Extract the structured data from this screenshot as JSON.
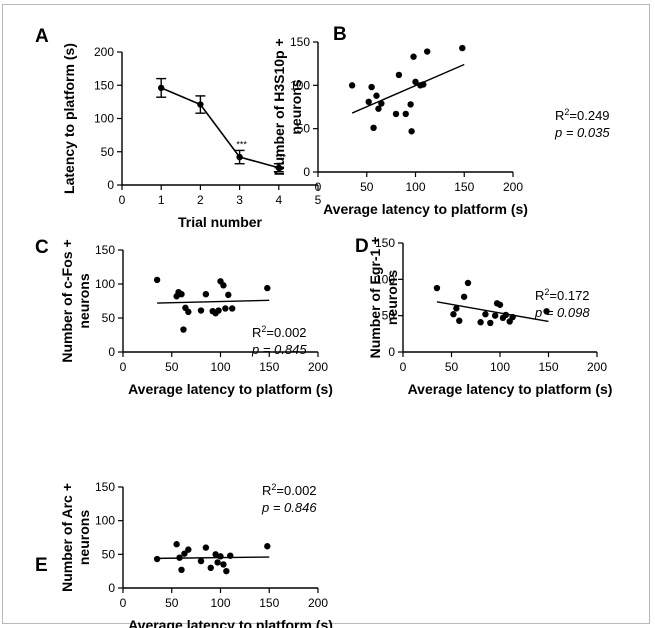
{
  "chart_data": [
    {
      "panel": "A",
      "type": "line",
      "xlabel": "Trial number",
      "ylabel": "Latency to platform (s)",
      "xlim": [
        0,
        5
      ],
      "ylim": [
        0,
        200
      ],
      "xticks": [
        0,
        1,
        2,
        3,
        4,
        5
      ],
      "yticks": [
        0,
        50,
        100,
        150,
        200
      ],
      "x": [
        1,
        2,
        3,
        4
      ],
      "values": [
        146,
        121,
        42,
        26
      ],
      "errors": [
        14,
        13,
        10,
        6
      ],
      "annotations": [
        "",
        "",
        "***",
        "***"
      ]
    },
    {
      "panel": "B",
      "type": "scatter",
      "xlabel": "Average latency to platform (s)",
      "ylabel": [
        "Number of H3S10p +",
        "neurons"
      ],
      "xlim": [
        0,
        200
      ],
      "ylim": [
        0,
        150
      ],
      "xticks": [
        0,
        50,
        100,
        150,
        200
      ],
      "yticks": [
        0,
        50,
        100,
        150
      ],
      "points": [
        [
          35,
          100
        ],
        [
          52,
          81
        ],
        [
          55,
          98
        ],
        [
          57,
          51
        ],
        [
          60,
          88
        ],
        [
          62,
          73
        ],
        [
          65,
          79
        ],
        [
          80,
          67
        ],
        [
          83,
          112
        ],
        [
          90,
          67
        ],
        [
          95,
          78
        ],
        [
          96,
          47
        ],
        [
          98,
          133
        ],
        [
          100,
          104
        ],
        [
          105,
          100
        ],
        [
          108,
          101
        ],
        [
          112,
          139
        ],
        [
          148,
          143
        ]
      ],
      "fit": [
        [
          35,
          68
        ],
        [
          150,
          124
        ]
      ],
      "r2_text": "=0.249",
      "p_text": "p = 0.035"
    },
    {
      "panel": "C",
      "type": "scatter",
      "xlabel": "Average latency to platform (s)",
      "ylabel": [
        "Number of c-Fos +",
        "neurons"
      ],
      "xlim": [
        0,
        200
      ],
      "ylim": [
        0,
        150
      ],
      "xticks": [
        0,
        50,
        100,
        150,
        200
      ],
      "yticks": [
        0,
        50,
        100,
        150
      ],
      "points": [
        [
          35,
          106
        ],
        [
          55,
          82
        ],
        [
          57,
          88
        ],
        [
          60,
          85
        ],
        [
          62,
          33
        ],
        [
          64,
          65
        ],
        [
          67,
          59
        ],
        [
          80,
          61
        ],
        [
          85,
          85
        ],
        [
          92,
          60
        ],
        [
          95,
          57
        ],
        [
          98,
          61
        ],
        [
          100,
          104
        ],
        [
          103,
          98
        ],
        [
          105,
          64
        ],
        [
          108,
          84
        ],
        [
          112,
          64
        ],
        [
          148,
          94
        ]
      ],
      "fit": [
        [
          35,
          72
        ],
        [
          150,
          76
        ]
      ],
      "r2_text": "=0.002",
      "p_text": "p = 0.845"
    },
    {
      "panel": "D",
      "type": "scatter",
      "xlabel": "Average latency to platform (s)",
      "ylabel": [
        "Number of Egr-1 +",
        "neurons"
      ],
      "xlim": [
        0,
        200
      ],
      "ylim": [
        0,
        150
      ],
      "xticks": [
        0,
        50,
        100,
        150,
        200
      ],
      "yticks": [
        0,
        50,
        100,
        150
      ],
      "points": [
        [
          35,
          88
        ],
        [
          52,
          52
        ],
        [
          55,
          60
        ],
        [
          58,
          43
        ],
        [
          63,
          76
        ],
        [
          67,
          95
        ],
        [
          80,
          41
        ],
        [
          85,
          52
        ],
        [
          90,
          40
        ],
        [
          95,
          50
        ],
        [
          97,
          67
        ],
        [
          100,
          65
        ],
        [
          103,
          47
        ],
        [
          106,
          51
        ],
        [
          110,
          42
        ],
        [
          113,
          48
        ],
        [
          148,
          56
        ]
      ],
      "fit": [
        [
          35,
          69
        ],
        [
          150,
          42
        ]
      ],
      "r2_text": "=0.172",
      "p_text": "p = 0.098"
    },
    {
      "panel": "E",
      "type": "scatter",
      "xlabel": "Average latency to platform (s)",
      "ylabel": [
        "Number of Arc +",
        "neurons"
      ],
      "xlim": [
        0,
        200
      ],
      "ylim": [
        0,
        150
      ],
      "xticks": [
        0,
        50,
        100,
        150,
        200
      ],
      "yticks": [
        0,
        50,
        100,
        150
      ],
      "points": [
        [
          35,
          43
        ],
        [
          55,
          65
        ],
        [
          58,
          45
        ],
        [
          60,
          27
        ],
        [
          63,
          51
        ],
        [
          67,
          57
        ],
        [
          80,
          40
        ],
        [
          85,
          60
        ],
        [
          90,
          30
        ],
        [
          95,
          50
        ],
        [
          97,
          38
        ],
        [
          100,
          47
        ],
        [
          103,
          35
        ],
        [
          106,
          25
        ],
        [
          110,
          48
        ],
        [
          148,
          62
        ]
      ],
      "fit": [
        [
          35,
          44
        ],
        [
          150,
          46
        ]
      ],
      "r2_text": "=0.002",
      "p_text": "p = 0.846"
    }
  ],
  "labels": {
    "panel_letters": [
      "A",
      "B",
      "C",
      "D",
      "E"
    ],
    "r2_prefix": "R",
    "r2_sup": "2"
  }
}
